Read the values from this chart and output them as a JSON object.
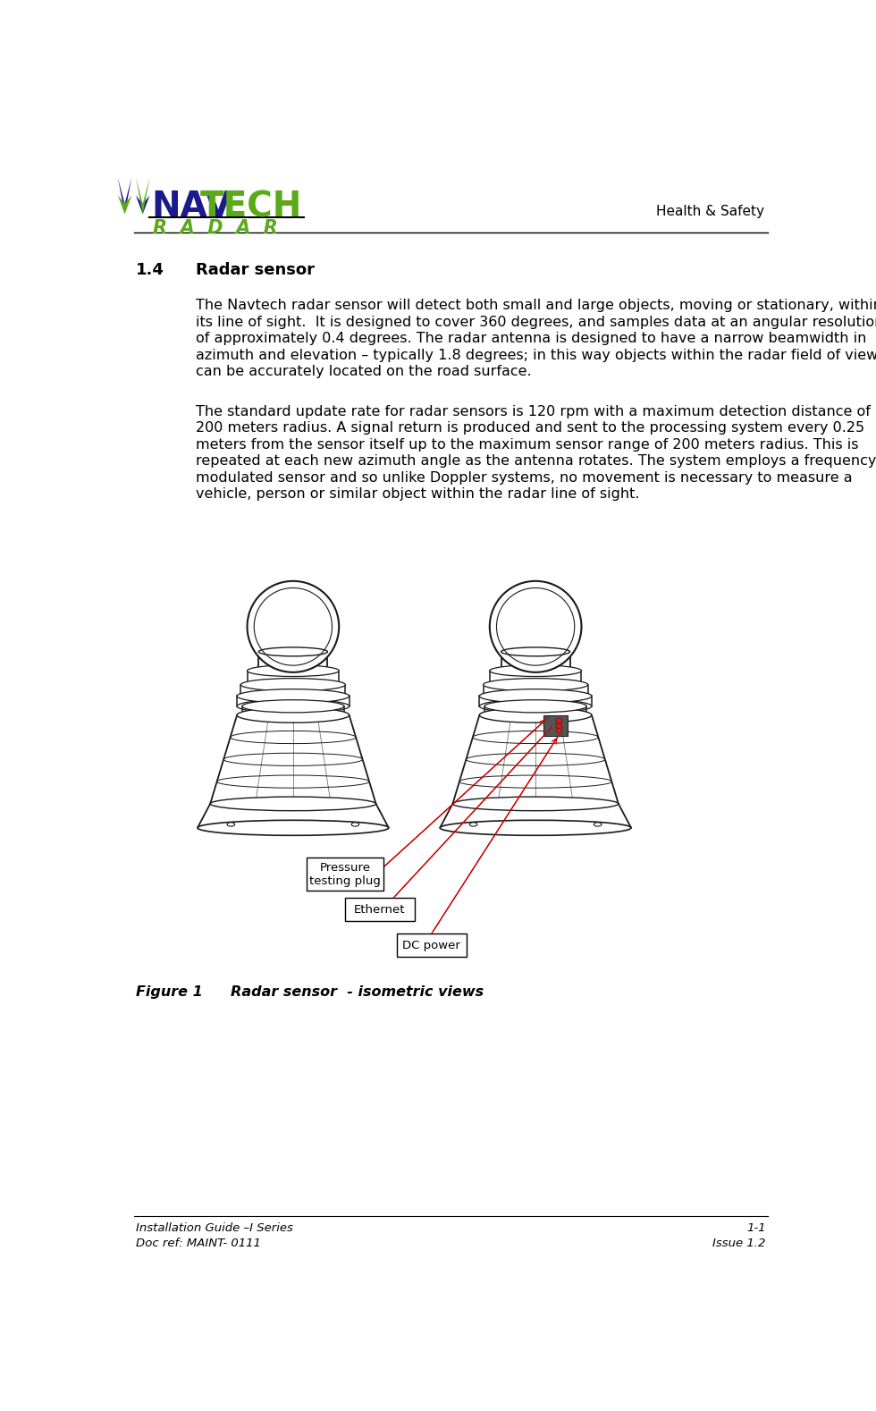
{
  "page_width": 9.8,
  "page_height": 15.78,
  "bg_color": "#ffffff",
  "header_text_right": "Health & Safety",
  "section_number": "1.4",
  "section_title": "Radar sensor",
  "para1_lines": [
    "The Navtech radar sensor will detect both small and large objects, moving or stationary, within",
    "its line of sight.  It is designed to cover 360 degrees, and samples data at an angular resolution",
    "of approximately 0.4 degrees. The radar antenna is designed to have a narrow beamwidth in",
    "azimuth and elevation – typically 1.8 degrees; in this way objects within the radar field of view",
    "can be accurately located on the road surface."
  ],
  "para2_lines": [
    "The standard update rate for radar sensors is 120 rpm with a maximum detection distance of",
    "200 meters radius. A signal return is produced and sent to the processing system every 0.25",
    "meters from the sensor itself up to the maximum sensor range of 200 meters radius. This is",
    "repeated at each new azimuth angle as the antenna rotates. The system employs a frequency",
    "modulated sensor and so unlike Doppler systems, no movement is necessary to measure a",
    "vehicle, person or similar object within the radar line of sight."
  ],
  "figure_caption_bold": "Figure 1",
  "figure_caption_rest": "        Radar sensor  - isometric views",
  "footer_left1": "Installation Guide –I Series",
  "footer_right1": "1-1",
  "footer_left2": "Doc ref: MAINT- 0111",
  "footer_right2": "Issue 1.2",
  "label_pressure": "Pressure\ntesting plug",
  "label_ethernet": "Ethernet",
  "label_dc": "DC power",
  "nav_color_blue": "#1a1a8c",
  "nav_color_green": "#5aaa1a",
  "text_color": "#000000",
  "body_fontsize": 11.5,
  "header_fontsize": 11,
  "section_num_fontsize": 13,
  "section_title_fontsize": 13,
  "line_color": "#333333",
  "label_line_color": "#cc0000"
}
